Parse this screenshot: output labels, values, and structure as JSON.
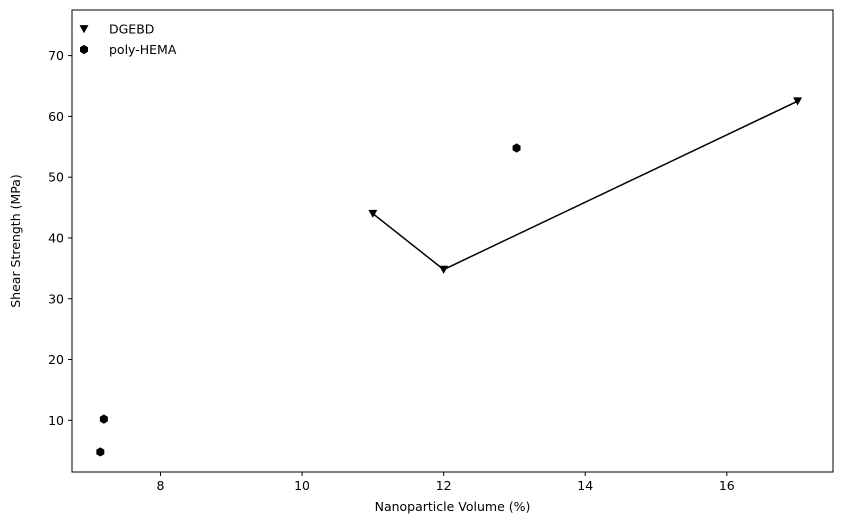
{
  "chart_data": {
    "type": "scatter",
    "title": "",
    "xlabel": "Nanoparticle Volume (%)",
    "ylabel": "Shear Strength (MPa)",
    "xlim": [
      6.75,
      17.5
    ],
    "ylim": [
      1.5,
      77.5
    ],
    "xticks": [
      8,
      10,
      12,
      14,
      16
    ],
    "yticks": [
      10,
      20,
      30,
      40,
      50,
      60,
      70
    ],
    "grid": false,
    "legend_position": "top-left",
    "series": [
      {
        "name": "DGEBD",
        "marker": "triangle-down",
        "connected": true,
        "color": "#000000",
        "points": [
          {
            "x": 11,
            "y": 44
          },
          {
            "x": 12,
            "y": 34.8
          },
          {
            "x": 17,
            "y": 62.5
          }
        ]
      },
      {
        "name": "poly-HEMA",
        "marker": "hexagon",
        "connected": false,
        "color": "#000000",
        "points": [
          {
            "x": 7.15,
            "y": 4.8
          },
          {
            "x": 7.2,
            "y": 10.2
          },
          {
            "x": 13.03,
            "y": 54.8
          }
        ]
      }
    ]
  }
}
